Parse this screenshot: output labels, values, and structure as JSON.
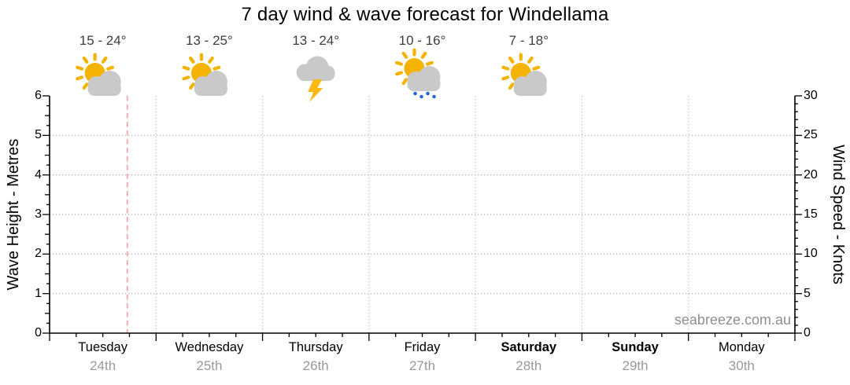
{
  "watermark": "seabreeze.com.au",
  "chart_data": {
    "type": "line",
    "title": "7 day wind & wave forecast for Windellama",
    "series": [],
    "y_left": {
      "label": "Wave Height - Metres",
      "min": 0,
      "max": 6,
      "major_step": 1,
      "minor_step": 0.25,
      "ticks": [
        "0",
        "1",
        "2",
        "3",
        "4",
        "5",
        "6"
      ],
      "gridlines": [
        1,
        2,
        3,
        4,
        5
      ]
    },
    "y_right": {
      "label": "Wind Speed - Knots",
      "min": 0,
      "max": 30,
      "major_step": 5,
      "minor_step": 1,
      "ticks": [
        "0",
        "5",
        "10",
        "15",
        "20",
        "25",
        "30"
      ],
      "gridlines": [
        5,
        10,
        15,
        20,
        25
      ]
    },
    "x_axis": {
      "minor_ticks_per_day": 4,
      "day_boundary_gridlines": true
    },
    "days": [
      {
        "name": "Tuesday",
        "date": "24th",
        "weekend": false,
        "temp": "15 - 24°",
        "icon": "sun-cloud-icon"
      },
      {
        "name": "Wednesday",
        "date": "25th",
        "weekend": false,
        "temp": "13 - 25°",
        "icon": "sun-cloud-icon"
      },
      {
        "name": "Thursday",
        "date": "26th",
        "weekend": false,
        "temp": "13 - 24°",
        "icon": "storm-icon"
      },
      {
        "name": "Friday",
        "date": "27th",
        "weekend": false,
        "temp": "10 - 16°",
        "icon": "sun-cloud-showers-icon"
      },
      {
        "name": "Saturday",
        "date": "28th",
        "weekend": true,
        "temp": "7 - 18°",
        "icon": "sun-cloud-icon"
      },
      {
        "name": "Sunday",
        "date": "29th",
        "weekend": true,
        "temp": null,
        "icon": null
      },
      {
        "name": "Monday",
        "date": "30th",
        "weekend": false,
        "temp": null,
        "icon": null
      }
    ],
    "current_time_marker": {
      "day_index": 0,
      "day_fraction": 0.73
    }
  },
  "colors": {
    "axis": "#000000",
    "grid_dotted": "#ABABAB",
    "day_boundary": "#BDBDBD",
    "current_time_line": "#F2A6A6",
    "sun": "#F5B301",
    "cloud": "#C9C9C9",
    "lightning": "#FDB913",
    "rain_drops": "#2566D9",
    "day_label": "#000000",
    "date_label": "#999999",
    "temp_label": "#3D3D3D",
    "watermark": "#8F8F8F"
  }
}
